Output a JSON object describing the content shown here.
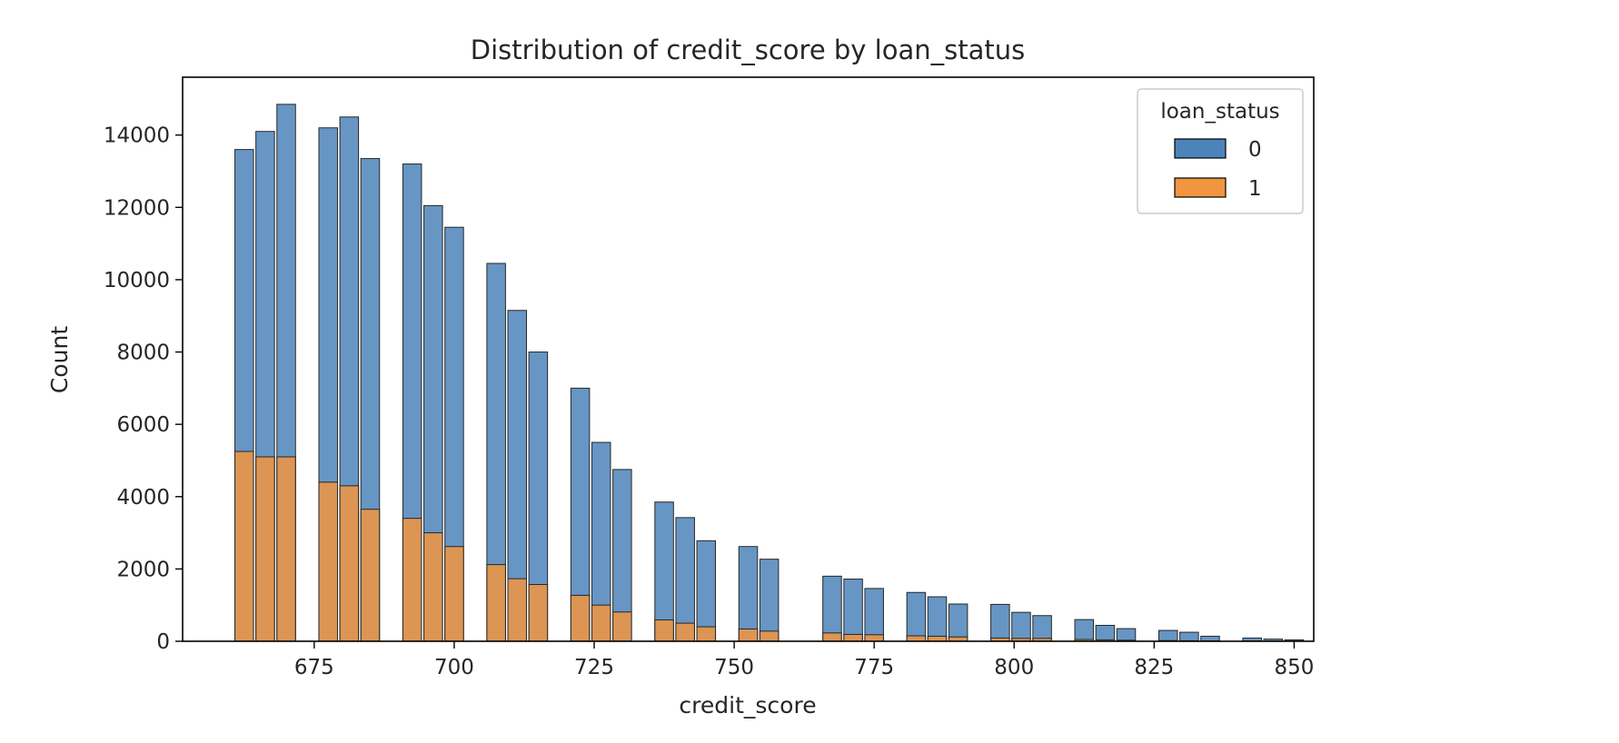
{
  "chart_data": {
    "type": "bar",
    "title": "Distribution of credit_score by loan_status",
    "xlabel": "credit_score",
    "ylabel": "Count",
    "xlim": [
      651.5,
      853.5
    ],
    "ylim": [
      0,
      15600
    ],
    "xticks": [
      675,
      700,
      725,
      750,
      775,
      800,
      825,
      850
    ],
    "yticks": [
      0,
      2000,
      4000,
      6000,
      8000,
      10000,
      12000,
      14000
    ],
    "x_centers": [
      662.5,
      666.25,
      670,
      677.5,
      681.25,
      685,
      692.5,
      696.25,
      700,
      707.5,
      711.25,
      715,
      722.5,
      726.25,
      730,
      737.5,
      741.25,
      745,
      752.5,
      756.25,
      767.5,
      771.25,
      775,
      782.5,
      786.25,
      790,
      797.5,
      801.25,
      805,
      812.5,
      816.25,
      820,
      827.5,
      831.25,
      835,
      842.5,
      846.25,
      850
    ],
    "series": [
      {
        "name": "0",
        "color": "#4c84ba",
        "values": [
          13600,
          14100,
          14850,
          14200,
          14500,
          13350,
          13200,
          12050,
          11450,
          10450,
          9150,
          8000,
          7000,
          5500,
          4750,
          3850,
          3420,
          2780,
          2620,
          2270,
          1800,
          1720,
          1460,
          1350,
          1230,
          1030,
          1020,
          800,
          710,
          600,
          440,
          350,
          300,
          250,
          140,
          90,
          60,
          40
        ]
      },
      {
        "name": "1",
        "color": "#f1953f",
        "values": [
          5250,
          5100,
          5100,
          4400,
          4300,
          3650,
          3400,
          3000,
          2620,
          2120,
          1730,
          1570,
          1270,
          1000,
          810,
          590,
          500,
          400,
          340,
          280,
          230,
          190,
          180,
          150,
          140,
          120,
          90,
          80,
          80,
          50,
          40,
          30,
          20,
          15,
          10,
          5,
          5,
          2
        ]
      }
    ],
    "legend": {
      "title": "loan_status",
      "position": "top-right"
    },
    "grid": false
  }
}
